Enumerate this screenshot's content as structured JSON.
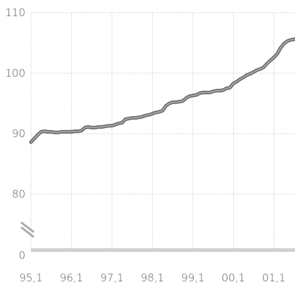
{
  "chart_data": {
    "type": "line",
    "title": "",
    "xlabel": "",
    "ylabel": "",
    "x_tick_labels": [
      "95,1",
      "96,1",
      "97,1",
      "98,1",
      "99,1",
      "00,1",
      "01,1"
    ],
    "y_tick_labels": [
      "0",
      "80",
      "90",
      "100",
      "110"
    ],
    "y_axis_break": true,
    "ylim": [
      80,
      110
    ],
    "grid": true,
    "colors": {
      "line": "#6b6b6b",
      "line_highlight": "#b5b5b5",
      "grid": "#cfcfcf",
      "baseline": "#d0d0d0",
      "text": "#555555"
    },
    "series": [
      {
        "x": [
          "95,1",
          "95,2",
          "95,3",
          "95,4",
          "95,5",
          "95,6",
          "95,7",
          "95,8",
          "95,9",
          "95,10",
          "95,11",
          "95,12",
          "96,1",
          "96,2",
          "96,3",
          "96,4",
          "96,5",
          "96,6",
          "96,7",
          "96,8",
          "96,9",
          "96,10",
          "96,11",
          "96,12",
          "97,1",
          "97,2",
          "97,3",
          "97,4",
          "97,5",
          "97,6",
          "97,7",
          "97,8",
          "97,9",
          "97,10",
          "97,11",
          "97,12",
          "98,1",
          "98,2",
          "98,3",
          "98,4",
          "98,5",
          "98,6",
          "98,7",
          "98,8",
          "98,9",
          "98,10",
          "98,11",
          "98,12",
          "99,1",
          "99,2",
          "99,3",
          "99,4",
          "99,5",
          "99,6",
          "99,7",
          "99,8",
          "99,9",
          "99,10",
          "99,11",
          "99,12",
          "00,1",
          "00,2",
          "00,3",
          "00,4",
          "00,5",
          "00,6",
          "00,7",
          "00,8",
          "00,9",
          "00,10",
          "00,11",
          "00,12",
          "01,1",
          "01,2",
          "01,3",
          "01,4",
          "01,5",
          "01,6",
          "01,7",
          "01,8",
          "01,9"
        ],
        "values": [
          88.6,
          89.2,
          89.8,
          90.3,
          90.4,
          90.3,
          90.3,
          90.2,
          90.2,
          90.3,
          90.3,
          90.3,
          90.3,
          90.4,
          90.4,
          90.5,
          91.0,
          91.1,
          91.0,
          91.0,
          91.1,
          91.1,
          91.2,
          91.3,
          91.3,
          91.5,
          91.7,
          91.8,
          92.4,
          92.5,
          92.6,
          92.6,
          92.7,
          92.8,
          93.0,
          93.1,
          93.3,
          93.5,
          93.6,
          93.8,
          94.6,
          95.0,
          95.2,
          95.2,
          95.3,
          95.4,
          95.9,
          96.2,
          96.3,
          96.4,
          96.7,
          96.8,
          96.8,
          96.8,
          97.0,
          97.1,
          97.1,
          97.2,
          97.5,
          97.6,
          98.3,
          98.6,
          99.0,
          99.3,
          99.7,
          99.9,
          100.2,
          100.5,
          100.7,
          101.0,
          101.6,
          102.1,
          102.6,
          103.2,
          104.2,
          104.9,
          105.3,
          105.5,
          105.6,
          105.8,
          106.1
        ]
      }
    ]
  }
}
